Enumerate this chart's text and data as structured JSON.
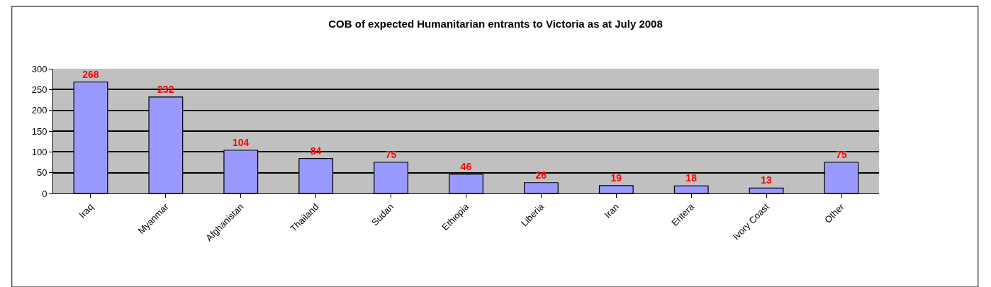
{
  "chart_data": {
    "type": "bar",
    "title": "COB of expected Humanitarian entrants to Victoria as at July 2008",
    "categories": [
      "Iraq",
      "Myanmar",
      "Afghanistan",
      "Thailand",
      "Sudan",
      "Ethiopia",
      "Liberia",
      "Iran",
      "Eritera",
      "Ivory Coast",
      "Other"
    ],
    "values": [
      268,
      232,
      104,
      84,
      75,
      46,
      26,
      19,
      18,
      13,
      75
    ],
    "color": "#9999ff",
    "ylim": [
      0,
      300
    ],
    "yticks": [
      0,
      50,
      100,
      150,
      200,
      250,
      300
    ],
    "grid": "y",
    "data_labels": true,
    "legend": false
  }
}
